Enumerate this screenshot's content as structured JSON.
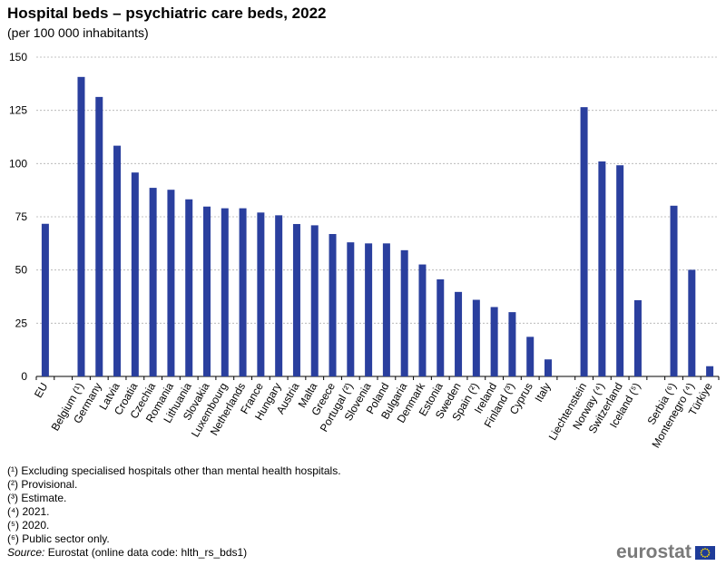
{
  "header": {
    "title": "Hospital beds – psychiatric care beds, 2022",
    "subtitle": "(per 100 000 inhabitants)"
  },
  "chart_data": {
    "type": "bar",
    "title": "Hospital beds – psychiatric care beds, 2022",
    "subtitle": "(per 100 000 inhabitants)",
    "xlabel": "",
    "ylabel": "",
    "ylim": [
      0,
      150
    ],
    "yticks": [
      "0",
      "25",
      "50",
      "75",
      "100",
      "125",
      "150"
    ],
    "grid": true,
    "bar_color": "#2a3f9e",
    "categories": [
      "EU",
      "",
      "Belgium (¹)",
      "Germany",
      "Latvia",
      "Croatia",
      "Czechia",
      "Romania",
      "Lithuania",
      "Slovakia",
      "Luxembourg",
      "Netherlands",
      "France",
      "Hungary",
      "Austria",
      "Malta",
      "Greece",
      "Portugal (²)",
      "Slovenia",
      "Poland",
      "Bulgaria",
      "Denmark",
      "Estonia",
      "Sweden",
      "Spain (²)",
      "Ireland",
      "Finland (³)",
      "Cyprus",
      "Italy",
      "",
      "Liechtenstein",
      "Norway (⁴)",
      "Switzerland",
      "Iceland (⁵)",
      "",
      "Serbia (⁶)",
      "Montenegro (⁴)",
      "Türkiye"
    ],
    "values": [
      71.7,
      null,
      140.7,
      131.3,
      108.4,
      95.8,
      88.6,
      87.7,
      83.2,
      79.8,
      79.0,
      79.0,
      77.0,
      75.7,
      71.6,
      71.0,
      66.9,
      63.0,
      62.5,
      62.5,
      59.3,
      52.6,
      45.6,
      39.7,
      36.0,
      32.6,
      30.2,
      18.6,
      8.0,
      null,
      126.5,
      101.0,
      99.2,
      35.8,
      null,
      80.2,
      50.1,
      4.8
    ]
  },
  "footnotes": [
    "(¹) Excluding specialised hospitals other than mental health hospitals.",
    "(²) Provisional.",
    "(³) Estimate.",
    "(⁴) 2021.",
    "(⁵) 2020.",
    "(⁶) Public sector only."
  ],
  "source": {
    "label": "Source:",
    "text": " Eurostat (online data code: hlth_rs_bds1)"
  },
  "logo": {
    "text": "eurostat"
  }
}
